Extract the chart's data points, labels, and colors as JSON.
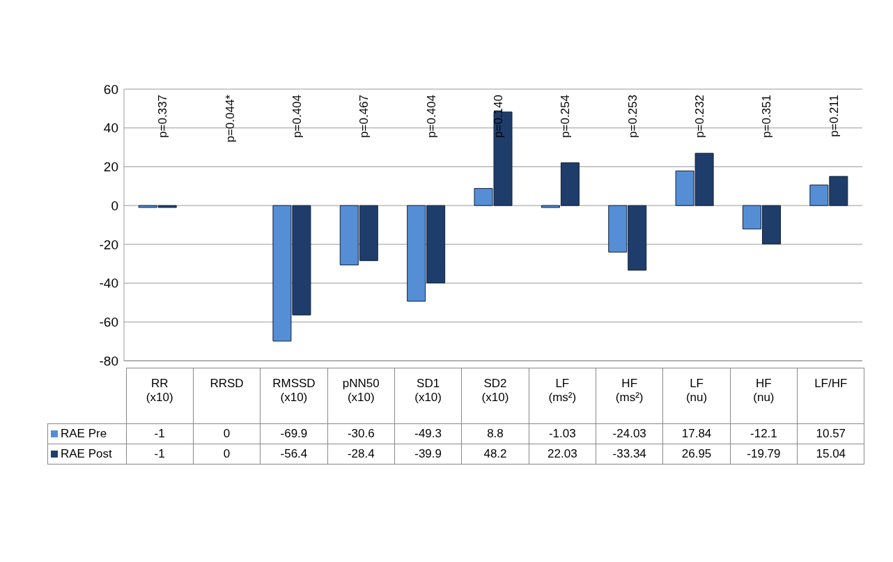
{
  "chart_data": {
    "type": "bar",
    "categories": [
      "RR (x10)",
      "RRSD",
      "RMSSD (x10)",
      "pNN50 (x10)",
      "SD1 (x10)",
      "SD2 (x10)",
      "LF (ms²)",
      "HF (ms²)",
      "LF (nu)",
      "HF (nu)",
      "LF/HF"
    ],
    "series": [
      {
        "name": "RAE Pre",
        "color": "#558ed5",
        "values": [
          -1,
          0,
          -69.9,
          -30.6,
          -49.3,
          8.8,
          -1.03,
          -24.03,
          17.84,
          -12.1,
          10.57
        ]
      },
      {
        "name": "RAE Post",
        "color": "#1f3d6b",
        "values": [
          -1,
          0,
          -56.4,
          -28.4,
          -39.9,
          48.2,
          22.03,
          -33.34,
          26.95,
          -19.79,
          15.04
        ]
      }
    ],
    "ylim": [
      -80,
      60
    ],
    "yticks": [
      -80,
      -60,
      -40,
      -20,
      0,
      20,
      40,
      60
    ],
    "grid": "y",
    "data_labels": true,
    "legend": "bottom left",
    "annotations": [
      "p=0.337",
      "p=0.044*",
      "p=0.404",
      "p=0.467",
      "p=0.404",
      "p=0.140",
      "p=0.254",
      "p=0.253",
      "p=0.232",
      "p=0.351",
      "p=0.211"
    ]
  }
}
